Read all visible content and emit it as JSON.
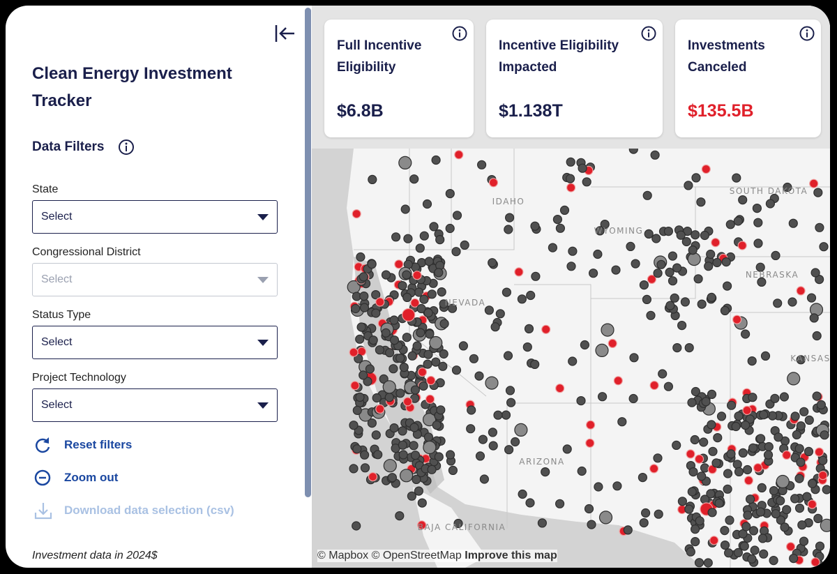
{
  "sidebar": {
    "title": "Clean Energy Investment Tracker",
    "filters_heading": "Data Filters",
    "filters": [
      {
        "label": "State",
        "placeholder": "Select",
        "disabled": false
      },
      {
        "label": "Congressional District",
        "placeholder": "Select",
        "disabled": true
      },
      {
        "label": "Status Type",
        "placeholder": "Select",
        "disabled": false
      },
      {
        "label": "Project Technology",
        "placeholder": "Select",
        "disabled": false
      }
    ],
    "actions": [
      {
        "label": "Reset filters",
        "disabled": false
      },
      {
        "label": "Zoom out",
        "disabled": false
      },
      {
        "label": "Download data selection (csv)",
        "disabled": true
      }
    ],
    "footnote": "Investment data in 2024$"
  },
  "cards": [
    {
      "title": "Full Incentive Eligibility",
      "value": "$6.8B",
      "color": "#1a1f4b"
    },
    {
      "title": "Incentive Eligibility Impacted",
      "value": "$1.138T",
      "color": "#1a1f4b"
    },
    {
      "title": "Investments Canceled",
      "value": "$135.5B",
      "color": "#e0202a"
    }
  ],
  "map": {
    "labels": [
      "IDAHO",
      "WYOMING",
      "NEVADA",
      "NEBRASKA",
      "ARIZONA",
      "SOUTH DAKOTA",
      "KANSAS",
      "BAJA CALIFORNIA"
    ],
    "attribution": "© Mapbox © OpenStreetMap",
    "improve": "Improve this map"
  }
}
